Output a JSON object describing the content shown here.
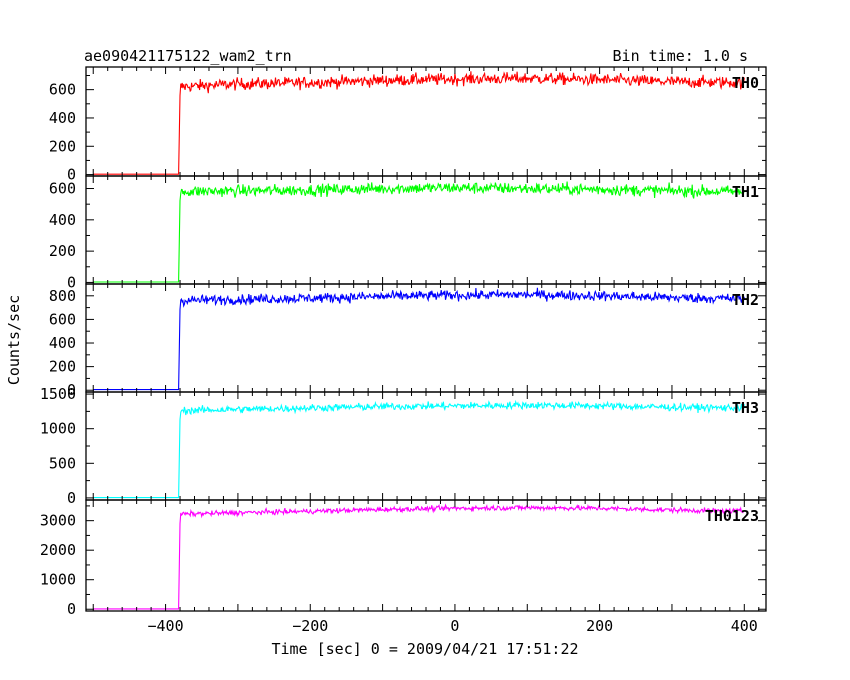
{
  "header": {
    "title": "ae090421175122_wam2_trn",
    "bin_time": "Bin time: 1.0 s"
  },
  "chart_data": {
    "type": "line",
    "xlabel": "Time [sec] 0 = 2009/04/21 17:51:22",
    "ylabel": "Counts/sec",
    "xlim": [
      -510,
      430
    ],
    "xticks": [
      -400,
      -200,
      0,
      200,
      400
    ],
    "xtick_labels": [
      "−400",
      "−200",
      "0",
      "200",
      "400"
    ],
    "trigger_time": -382,
    "grid": false,
    "panels": [
      {
        "name": "TH0",
        "color": "#ff0000",
        "ylim": [
          -10,
          760
        ],
        "yticks": [
          0,
          200,
          400,
          600
        ],
        "ytick_labels": [
          "0",
          "200",
          "400",
          "600"
        ],
        "pre_level": 3,
        "x_start": -500,
        "x_end": 400,
        "levels": [
          [
            -382,
            620
          ],
          [
            -300,
            640
          ],
          [
            -200,
            650
          ],
          [
            -100,
            665
          ],
          [
            0,
            675
          ],
          [
            100,
            680
          ],
          [
            200,
            670
          ],
          [
            300,
            655
          ],
          [
            400,
            650
          ]
        ],
        "noise": 40
      },
      {
        "name": "TH1",
        "color": "#00ff00",
        "ylim": [
          -10,
          680
        ],
        "yticks": [
          0,
          200,
          400,
          600
        ],
        "ytick_labels": [
          "0",
          "200",
          "400",
          "600"
        ],
        "pre_level": 3,
        "x_start": -500,
        "x_end": 400,
        "levels": [
          [
            -382,
            580
          ],
          [
            -300,
            585
          ],
          [
            -200,
            590
          ],
          [
            -100,
            600
          ],
          [
            0,
            605
          ],
          [
            100,
            600
          ],
          [
            200,
            595
          ],
          [
            300,
            585
          ],
          [
            400,
            580
          ]
        ],
        "noise": 35
      },
      {
        "name": "TH2",
        "color": "#0000ff",
        "ylim": [
          -15,
          900
        ],
        "yticks": [
          0,
          200,
          400,
          600,
          800
        ],
        "ytick_labels": [
          "0",
          "200",
          "400",
          "600",
          "800"
        ],
        "pre_level": 5,
        "x_start": -500,
        "x_end": 400,
        "levels": [
          [
            -382,
            760
          ],
          [
            -300,
            770
          ],
          [
            -200,
            780
          ],
          [
            -100,
            795
          ],
          [
            0,
            805
          ],
          [
            100,
            810
          ],
          [
            200,
            800
          ],
          [
            300,
            785
          ],
          [
            400,
            775
          ]
        ],
        "noise": 40
      },
      {
        "name": "TH3",
        "color": "#00ffff",
        "ylim": [
          -30,
          1530
        ],
        "yticks": [
          0,
          500,
          1000,
          1500
        ],
        "ytick_labels": [
          "0",
          "500",
          "1000",
          "1500"
        ],
        "pre_level": 5,
        "x_start": -500,
        "x_end": 400,
        "levels": [
          [
            -382,
            1260
          ],
          [
            -300,
            1280
          ],
          [
            -200,
            1300
          ],
          [
            -100,
            1320
          ],
          [
            0,
            1330
          ],
          [
            100,
            1340
          ],
          [
            200,
            1330
          ],
          [
            300,
            1310
          ],
          [
            400,
            1300
          ]
        ],
        "noise": 50
      },
      {
        "name": "TH0123",
        "color": "#ff00ff",
        "ylim": [
          -60,
          3700
        ],
        "yticks": [
          0,
          1000,
          2000,
          3000
        ],
        "ytick_labels": [
          "0",
          "1000",
          "2000",
          "3000"
        ],
        "pre_level": 10,
        "x_start": -500,
        "x_end": 400,
        "levels": [
          [
            -382,
            3220
          ],
          [
            -300,
            3270
          ],
          [
            -200,
            3320
          ],
          [
            -100,
            3380
          ],
          [
            0,
            3420
          ],
          [
            100,
            3440
          ],
          [
            200,
            3420
          ],
          [
            300,
            3360
          ],
          [
            400,
            3320
          ]
        ],
        "noise": 80
      }
    ]
  }
}
